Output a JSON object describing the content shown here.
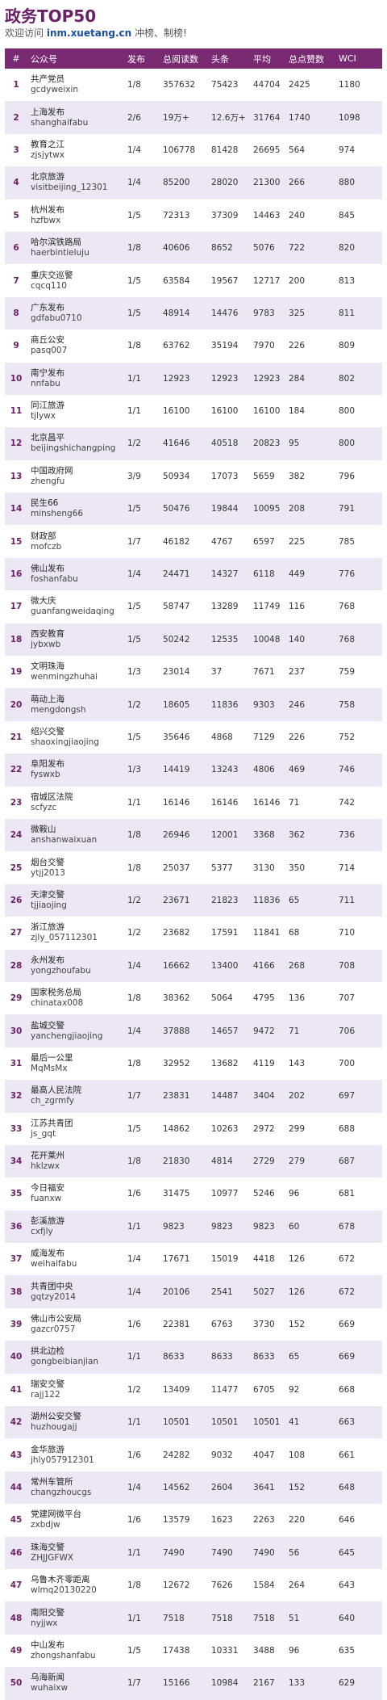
{
  "header": {
    "title": "政务TOP50",
    "welcome": "欢迎访问",
    "site": "inm.xuetang.cn",
    "slogan": "冲榜、制榜!"
  },
  "table": {
    "columns": [
      "#",
      "公众号",
      "发布",
      "总阅读数",
      "头条",
      "平均",
      "总点赞数",
      "WCI"
    ],
    "rows": [
      {
        "rank": "1",
        "name": "共产党员",
        "id": "gcdyweixin",
        "publish": "1/8",
        "total": "357632",
        "top": "75423",
        "avg": "44704",
        "likes": "2425",
        "wci": "1180"
      },
      {
        "rank": "2",
        "name": "上海发布",
        "id": "shanghaifabu",
        "publish": "2/6",
        "total": "19万+",
        "top": "12.6万+",
        "avg": "31764",
        "likes": "1740",
        "wci": "1098"
      },
      {
        "rank": "3",
        "name": "教育之江",
        "id": "zjsjytwx",
        "publish": "1/4",
        "total": "106778",
        "top": "81428",
        "avg": "26695",
        "likes": "564",
        "wci": "974"
      },
      {
        "rank": "4",
        "name": "北京旅游",
        "id": "visitbeijing_12301",
        "publish": "1/4",
        "total": "85200",
        "top": "28020",
        "avg": "21300",
        "likes": "266",
        "wci": "880"
      },
      {
        "rank": "5",
        "name": "杭州发布",
        "id": "hzfbwx",
        "publish": "1/5",
        "total": "72313",
        "top": "37309",
        "avg": "14463",
        "likes": "240",
        "wci": "845"
      },
      {
        "rank": "6",
        "name": "哈尔滨铁路局",
        "id": "haerbintieluju",
        "publish": "1/8",
        "total": "40606",
        "top": "8652",
        "avg": "5076",
        "likes": "722",
        "wci": "820"
      },
      {
        "rank": "7",
        "name": "重庆交巡警",
        "id": "cqcq110",
        "publish": "1/5",
        "total": "63584",
        "top": "19567",
        "avg": "12717",
        "likes": "200",
        "wci": "813"
      },
      {
        "rank": "8",
        "name": "广东发布",
        "id": "gdfabu0710",
        "publish": "1/5",
        "total": "48914",
        "top": "14476",
        "avg": "9783",
        "likes": "325",
        "wci": "811"
      },
      {
        "rank": "9",
        "name": "商丘公安",
        "id": "pasq007",
        "publish": "1/8",
        "total": "63762",
        "top": "35194",
        "avg": "7970",
        "likes": "226",
        "wci": "809"
      },
      {
        "rank": "10",
        "name": "南宁发布",
        "id": "nnfabu",
        "publish": "1/1",
        "total": "12923",
        "top": "12923",
        "avg": "12923",
        "likes": "284",
        "wci": "802"
      },
      {
        "rank": "11",
        "name": "同江旅游",
        "id": "tjlywx",
        "publish": "1/1",
        "total": "16100",
        "top": "16100",
        "avg": "16100",
        "likes": "184",
        "wci": "800"
      },
      {
        "rank": "12",
        "name": "北京昌平",
        "id": "beijingshichangping",
        "publish": "1/2",
        "total": "41646",
        "top": "40518",
        "avg": "20823",
        "likes": "95",
        "wci": "800"
      },
      {
        "rank": "13",
        "name": "中国政府网",
        "id": "zhengfu",
        "publish": "3/9",
        "total": "50934",
        "top": "17073",
        "avg": "5659",
        "likes": "382",
        "wci": "796"
      },
      {
        "rank": "14",
        "name": "民生66",
        "id": "minsheng66",
        "publish": "1/5",
        "total": "50476",
        "top": "19844",
        "avg": "10095",
        "likes": "208",
        "wci": "791"
      },
      {
        "rank": "15",
        "name": "财政部",
        "id": "mofczb",
        "publish": "1/7",
        "total": "46182",
        "top": "4767",
        "avg": "6597",
        "likes": "225",
        "wci": "785"
      },
      {
        "rank": "16",
        "name": "佛山发布",
        "id": "foshanfabu",
        "publish": "1/4",
        "total": "24471",
        "top": "14327",
        "avg": "6118",
        "likes": "449",
        "wci": "776"
      },
      {
        "rank": "17",
        "name": "微大庆",
        "id": "guanfangweidaqing",
        "publish": "1/5",
        "total": "58747",
        "top": "13289",
        "avg": "11749",
        "likes": "116",
        "wci": "768"
      },
      {
        "rank": "18",
        "name": "西安教育",
        "id": "jybxwb",
        "publish": "1/5",
        "total": "50242",
        "top": "12535",
        "avg": "10048",
        "likes": "140",
        "wci": "768"
      },
      {
        "rank": "19",
        "name": "文明珠海",
        "id": "wenmingzhuhai",
        "publish": "1/3",
        "total": "23014",
        "top": "37",
        "avg": "7671",
        "likes": "237",
        "wci": "759"
      },
      {
        "rank": "20",
        "name": "萌动上海",
        "id": "mengdongsh",
        "publish": "1/2",
        "total": "18605",
        "top": "11836",
        "avg": "9303",
        "likes": "246",
        "wci": "758"
      },
      {
        "rank": "21",
        "name": "绍兴交警",
        "id": "shaoxingjiaojing",
        "publish": "1/5",
        "total": "35646",
        "top": "4868",
        "avg": "7129",
        "likes": "226",
        "wci": "752"
      },
      {
        "rank": "22",
        "name": "阜阳发布",
        "id": "fyswxb",
        "publish": "1/3",
        "total": "14419",
        "top": "13243",
        "avg": "4806",
        "likes": "469",
        "wci": "746"
      },
      {
        "rank": "23",
        "name": "宿城区法院",
        "id": "scfyzc",
        "publish": "1/1",
        "total": "16146",
        "top": "16146",
        "avg": "16146",
        "likes": "71",
        "wci": "742"
      },
      {
        "rank": "24",
        "name": "微鞍山",
        "id": "anshanwaixuan",
        "publish": "1/8",
        "total": "26946",
        "top": "12001",
        "avg": "3368",
        "likes": "362",
        "wci": "736"
      },
      {
        "rank": "25",
        "name": "烟台交警",
        "id": "ytjj2013",
        "publish": "1/8",
        "total": "25037",
        "top": "5377",
        "avg": "3130",
        "likes": "350",
        "wci": "714"
      },
      {
        "rank": "26",
        "name": "天津交警",
        "id": "tjjiaojing",
        "publish": "1/2",
        "total": "23671",
        "top": "21823",
        "avg": "11836",
        "likes": "65",
        "wci": "711"
      },
      {
        "rank": "27",
        "name": "浙江旅游",
        "id": "zjly_057112301",
        "publish": "1/2",
        "total": "23682",
        "top": "17591",
        "avg": "11841",
        "likes": "68",
        "wci": "710"
      },
      {
        "rank": "28",
        "name": "永州发布",
        "id": "yongzhoufabu",
        "publish": "1/4",
        "total": "16662",
        "top": "13400",
        "avg": "4166",
        "likes": "268",
        "wci": "708"
      },
      {
        "rank": "29",
        "name": "国家税务总局",
        "id": "chinatax008",
        "publish": "1/8",
        "total": "38362",
        "top": "5064",
        "avg": "4795",
        "likes": "136",
        "wci": "707"
      },
      {
        "rank": "30",
        "name": "盐城交警",
        "id": "yanchengjiaojing",
        "publish": "1/4",
        "total": "37888",
        "top": "14657",
        "avg": "9472",
        "likes": "71",
        "wci": "706"
      },
      {
        "rank": "31",
        "name": "最后一公里",
        "id": "MqMsMx",
        "publish": "1/8",
        "total": "32952",
        "top": "13682",
        "avg": "4119",
        "likes": "143",
        "wci": "700"
      },
      {
        "rank": "32",
        "name": "最高人民法院",
        "id": "ch_zgrmfy",
        "publish": "1/7",
        "total": "23831",
        "top": "14487",
        "avg": "3404",
        "likes": "202",
        "wci": "697"
      },
      {
        "rank": "33",
        "name": "江苏共青团",
        "id": "js_gqt",
        "publish": "1/5",
        "total": "14862",
        "top": "10263",
        "avg": "2972",
        "likes": "299",
        "wci": "688"
      },
      {
        "rank": "34",
        "name": "花开莱州",
        "id": "hklzwx",
        "publish": "1/8",
        "total": "21830",
        "top": "4814",
        "avg": "2729",
        "likes": "279",
        "wci": "687"
      },
      {
        "rank": "35",
        "name": "今日福安",
        "id": "fuanxw",
        "publish": "1/6",
        "total": "31475",
        "top": "10977",
        "avg": "5246",
        "likes": "96",
        "wci": "681"
      },
      {
        "rank": "36",
        "name": "彭溪旅游",
        "id": "cxfjly",
        "publish": "1/1",
        "total": "9823",
        "top": "9823",
        "avg": "9823",
        "likes": "60",
        "wci": "678"
      },
      {
        "rank": "37",
        "name": "威海发布",
        "id": "weihaifabu",
        "publish": "1/4",
        "total": "17671",
        "top": "15019",
        "avg": "4418",
        "likes": "126",
        "wci": "672"
      },
      {
        "rank": "38",
        "name": "共青团中央",
        "id": "gqtzy2014",
        "publish": "1/4",
        "total": "20106",
        "top": "2541",
        "avg": "5027",
        "likes": "126",
        "wci": "672"
      },
      {
        "rank": "39",
        "name": "佛山市公安局",
        "id": "gazcr0757",
        "publish": "1/6",
        "total": "22381",
        "top": "6763",
        "avg": "3730",
        "likes": "152",
        "wci": "669"
      },
      {
        "rank": "40",
        "name": "拱北边检",
        "id": "gongbeibianjian",
        "publish": "1/1",
        "total": "8633",
        "top": "8633",
        "avg": "8633",
        "likes": "65",
        "wci": "669"
      },
      {
        "rank": "41",
        "name": "瑞安交警",
        "id": "rajj122",
        "publish": "1/2",
        "total": "13409",
        "top": "11477",
        "avg": "6705",
        "likes": "92",
        "wci": "668"
      },
      {
        "rank": "42",
        "name": "湖州公安交警",
        "id": "huzhougajj",
        "publish": "1/1",
        "total": "10501",
        "top": "10501",
        "avg": "10501",
        "likes": "41",
        "wci": "663"
      },
      {
        "rank": "43",
        "name": "金华旅游",
        "id": "jhly057912301",
        "publish": "1/6",
        "total": "24282",
        "top": "9032",
        "avg": "4047",
        "likes": "108",
        "wci": "661"
      },
      {
        "rank": "44",
        "name": "常州车管所",
        "id": "changzhoucgs",
        "publish": "1/4",
        "total": "14562",
        "top": "2604",
        "avg": "3641",
        "likes": "152",
        "wci": "648"
      },
      {
        "rank": "45",
        "name": "党建网微平台",
        "id": "zxbdjw",
        "publish": "1/6",
        "total": "13579",
        "top": "1623",
        "avg": "2263",
        "likes": "220",
        "wci": "646"
      },
      {
        "rank": "46",
        "name": "珠海交警",
        "id": "ZHJJGFWX",
        "publish": "1/1",
        "total": "7490",
        "top": "7490",
        "avg": "7490",
        "likes": "56",
        "wci": "645"
      },
      {
        "rank": "47",
        "name": "乌鲁木齐零距离",
        "id": "wlmq20130220",
        "publish": "1/8",
        "total": "12672",
        "top": "7626",
        "avg": "1584",
        "likes": "264",
        "wci": "643"
      },
      {
        "rank": "48",
        "name": "南阳交警",
        "id": "nyjjwx",
        "publish": "1/1",
        "total": "7518",
        "top": "7518",
        "avg": "7518",
        "likes": "51",
        "wci": "640"
      },
      {
        "rank": "49",
        "name": "中山发布",
        "id": "zhongshanfabu",
        "publish": "1/5",
        "total": "17438",
        "top": "10331",
        "avg": "3488",
        "likes": "96",
        "wci": "635"
      },
      {
        "rank": "50",
        "name": "乌海新闻",
        "id": "wuhaixw",
        "publish": "1/7",
        "total": "15166",
        "top": "10984",
        "avg": "2167",
        "likes": "133",
        "wci": "629"
      }
    ]
  }
}
